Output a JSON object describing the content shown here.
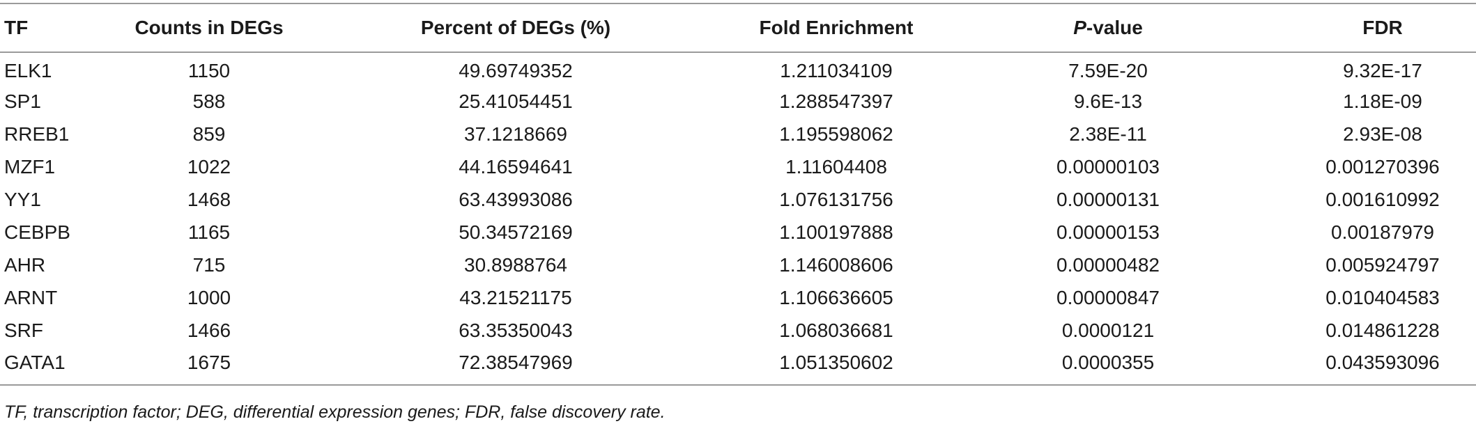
{
  "table": {
    "columns": [
      {
        "label": "TF"
      },
      {
        "label": "Counts in DEGs"
      },
      {
        "label": "Percent of DEGs (%)"
      },
      {
        "label": "Fold Enrichment"
      },
      {
        "label_italic": "P",
        "label_rest": "-value"
      },
      {
        "label": "FDR"
      }
    ],
    "rows": [
      {
        "tf": "ELK1",
        "counts": "1150",
        "percent": "49.69749352",
        "fold": "1.211034109",
        "pvalue": "7.59E-20",
        "fdr": "9.32E-17"
      },
      {
        "tf": "SP1",
        "counts": "588",
        "percent": "25.41054451",
        "fold": "1.288547397",
        "pvalue": "9.6E-13",
        "fdr": "1.18E-09"
      },
      {
        "tf": "RREB1",
        "counts": "859",
        "percent": "37.1218669",
        "fold": "1.195598062",
        "pvalue": "2.38E-11",
        "fdr": "2.93E-08"
      },
      {
        "tf": "MZF1",
        "counts": "1022",
        "percent": "44.16594641",
        "fold": "1.11604408",
        "pvalue": "0.00000103",
        "fdr": "0.001270396"
      },
      {
        "tf": "YY1",
        "counts": "1468",
        "percent": "63.43993086",
        "fold": "1.076131756",
        "pvalue": "0.00000131",
        "fdr": "0.001610992"
      },
      {
        "tf": "CEBPB",
        "counts": "1165",
        "percent": "50.34572169",
        "fold": "1.100197888",
        "pvalue": "0.00000153",
        "fdr": "0.00187979"
      },
      {
        "tf": "AHR",
        "counts": "715",
        "percent": "30.8988764",
        "fold": "1.146008606",
        "pvalue": "0.00000482",
        "fdr": "0.005924797"
      },
      {
        "tf": "ARNT",
        "counts": "1000",
        "percent": "43.21521175",
        "fold": "1.106636605",
        "pvalue": "0.00000847",
        "fdr": "0.010404583"
      },
      {
        "tf": "SRF",
        "counts": "1466",
        "percent": "63.35350043",
        "fold": "1.068036681",
        "pvalue": "0.0000121",
        "fdr": "0.014861228"
      },
      {
        "tf": "GATA1",
        "counts": "1675",
        "percent": "72.38547969",
        "fold": "1.051350602",
        "pvalue": "0.0000355",
        "fdr": "0.043593096"
      }
    ]
  },
  "footnote": "TF, transcription factor; DEG, differential expression genes; FDR, false discovery rate."
}
